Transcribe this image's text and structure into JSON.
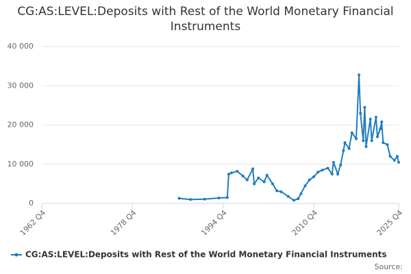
{
  "chart_data": {
    "type": "line",
    "title": "CG:AS:LEVEL:Deposits with Rest of the World Monetary Financial Instruments",
    "source": "Source:",
    "x": [
      "1987 Q1",
      "1989 Q1",
      "1991 Q3",
      "1994 Q1",
      "1995 Q3",
      "1995 Q4",
      "1996 Q2",
      "1997 Q2",
      "1998 Q2",
      "1999 Q1",
      "2000 Q1",
      "2000 Q2",
      "2001 Q1",
      "2002 Q1",
      "2002 Q3",
      "2003 Q3",
      "2004 Q2",
      "2005 Q1",
      "2006 Q2",
      "2007 Q2",
      "2008 Q1",
      "2008 Q3",
      "2009 Q2",
      "2010 Q1",
      "2010 Q4",
      "2011 Q3",
      "2012 Q2",
      "2013 Q2",
      "2014 Q1",
      "2014 Q2",
      "2015 Q1",
      "2015 Q3",
      "2016 Q1",
      "2016 Q2",
      "2017 Q1",
      "2017 Q3",
      "2018 Q2",
      "2018 Q4",
      "2019 Q1",
      "2019 Q3",
      "2019 Q4",
      "2020 Q1",
      "2020 Q4",
      "2021 Q1",
      "2021 Q4",
      "2022 Q1",
      "2022 Q3",
      "2022 Q4",
      "2023 Q1",
      "2023 Q4",
      "2024 Q2",
      "2025 Q1",
      "2025 Q3",
      "2025 Q4"
    ],
    "series": [
      {
        "name": "CG:AS:LEVEL:Deposits with Rest of the World Monetary Financial Instruments",
        "color": "#1f7bbf",
        "values": [
          1300,
          1000,
          1100,
          1400,
          1500,
          7500,
          7800,
          8200,
          7000,
          6000,
          8800,
          5000,
          6500,
          5500,
          7200,
          5000,
          3200,
          3000,
          1800,
          800,
          1200,
          2500,
          4500,
          6000,
          6800,
          8000,
          8500,
          9000,
          7500,
          10500,
          7500,
          9800,
          13500,
          15500,
          14000,
          18000,
          16500,
          32800,
          23000,
          16000,
          24500,
          14500,
          21500,
          16000,
          22000,
          17000,
          19000,
          20800,
          15500,
          15000,
          12000,
          11000,
          12000,
          10500
        ]
      }
    ],
    "xlim": [
      "1962 Q4",
      "2025 Q4"
    ],
    "xticks": [
      "1962 Q4",
      "1978 Q4",
      "1994 Q4",
      "2010 Q4",
      "2025 Q4"
    ],
    "ylim": [
      0,
      40000
    ],
    "yticks": [
      0,
      {
        "value": 10000,
        "label": "10 000"
      },
      {
        "value": 20000,
        "label": "20 000"
      },
      {
        "value": 30000,
        "label": "30 000"
      },
      {
        "value": 40000,
        "label": "40 000"
      }
    ],
    "grid": true,
    "legend": "bottom"
  }
}
